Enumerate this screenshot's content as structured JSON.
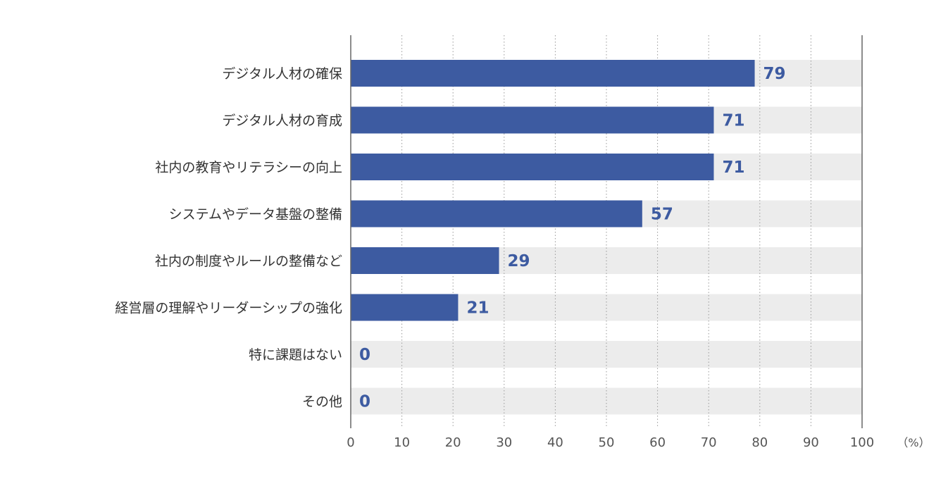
{
  "chart_data": {
    "type": "bar",
    "orientation": "horizontal",
    "categories": [
      "デジタル人材の確保",
      "デジタル人材の育成",
      "社内の教育やリテラシーの向上",
      "システムやデータ基盤の整備",
      "社内の制度やルールの整備など",
      "経営層の理解やリーダーシップの強化",
      "特に課題はない",
      "その他"
    ],
    "values": [
      79,
      71,
      71,
      57,
      29,
      21,
      0,
      0
    ],
    "xlim": [
      0,
      100
    ],
    "xticks": [
      0,
      10,
      20,
      30,
      40,
      50,
      60,
      70,
      80,
      90,
      100
    ],
    "unit_label": "（%）",
    "grid": true,
    "background_track": true,
    "colors": {
      "bar": "#3d5ba1",
      "track": "#ececec",
      "value_text": "#3d5ba1",
      "grid": "#999999",
      "axis": "#666666"
    }
  }
}
